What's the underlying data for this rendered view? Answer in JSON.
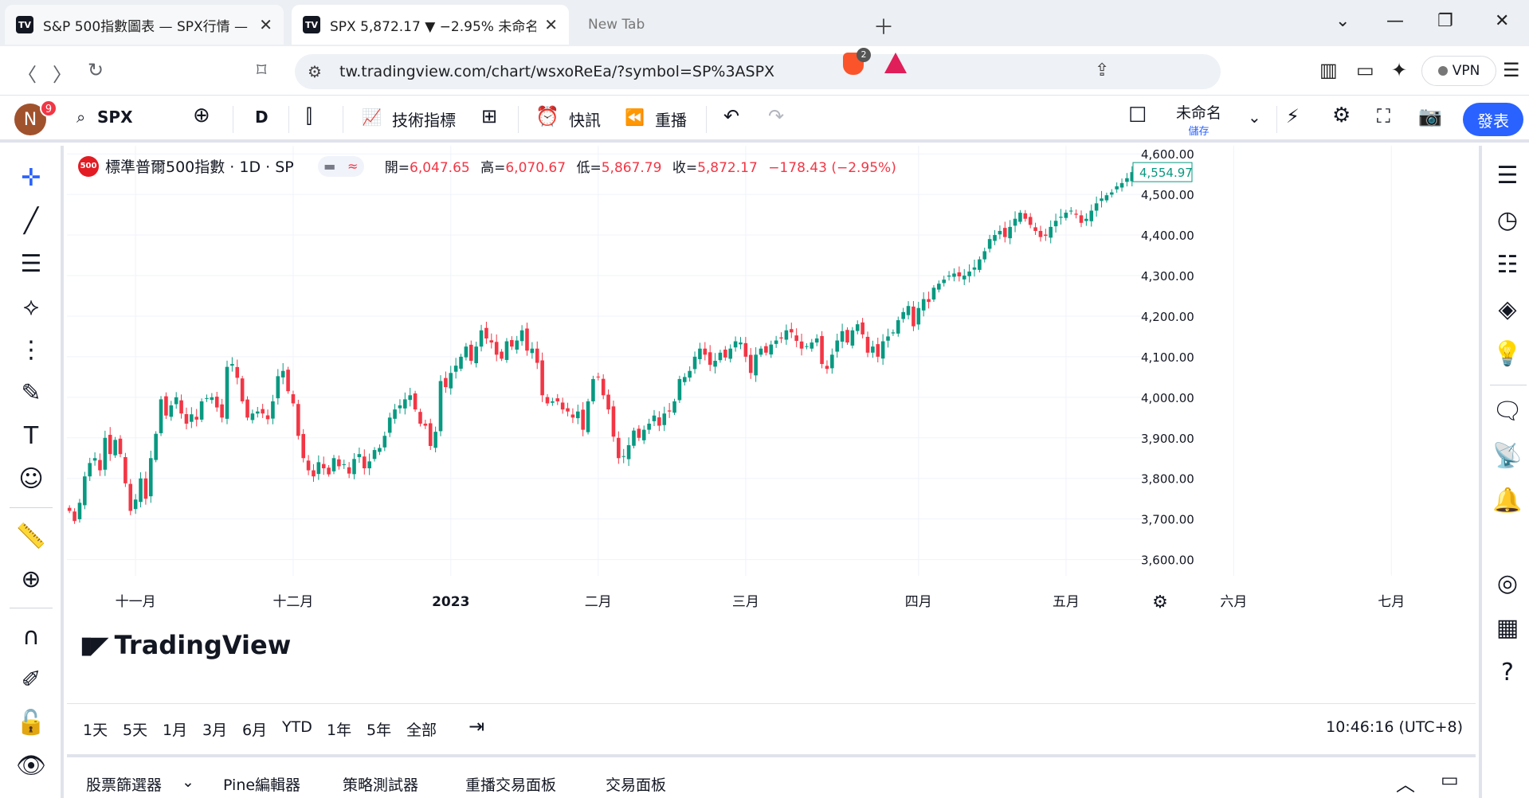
{
  "browser": {
    "tabs": [
      {
        "title": "S&P 500指數圖表 — SPX行情 —",
        "favicon": "TV"
      },
      {
        "title": "SPX 5,872.17 ▼ −2.95% 未命名",
        "favicon": "TV"
      },
      {
        "title": "New Tab"
      }
    ],
    "url": "tw.tradingview.com/chart/wsxoReEa/?symbol=SP%3ASPX",
    "brave_badge": "2",
    "vpn_label": "VPN"
  },
  "toolbar": {
    "avatar_letter": "N",
    "notification_count": "9",
    "symbol": "SPX",
    "interval": "D",
    "indicators_label": "技術指標",
    "alert_label": "快訊",
    "replay_label": "重播",
    "layout_name": "未命名",
    "save_label": "儲存",
    "publish_label": "發表"
  },
  "legend": {
    "symbol_icon": "500",
    "title": "標準普爾500指數 · 1D · SP",
    "open_label": "開=",
    "open": "6,047.65",
    "high_label": "高=",
    "high": "6,070.67",
    "low_label": "低=",
    "low": "5,867.79",
    "close_label": "收=",
    "close": "5,872.17",
    "change": "−178.43 (−2.95%)"
  },
  "watermark": "TradingView",
  "chart_data": {
    "type": "candlestick",
    "y_ticks": [
      "4,600.00",
      "4,500.00",
      "4,400.00",
      "4,300.00",
      "4,200.00",
      "4,100.00",
      "4,000.00",
      "3,900.00",
      "3,800.00",
      "3,700.00",
      "3,600.00"
    ],
    "y_tick_values": [
      4600,
      4500,
      4400,
      4300,
      4200,
      4100,
      4000,
      3900,
      3800,
      3700,
      3600
    ],
    "ylim": [
      3560,
      4620
    ],
    "x_ticks": [
      "十一月",
      "十二月",
      "2023",
      "二月",
      "三月",
      "四月",
      "五月",
      "六月",
      "七月"
    ],
    "x_tick_index": [
      13,
      44,
      75,
      104,
      133,
      167,
      196,
      229,
      260
    ],
    "last_price": "4,554.97",
    "last_value": 4554.97,
    "up_color": "#089981",
    "down_color": "#f23645",
    "closes": [
      3720,
      3695,
      3740,
      3805,
      3838,
      3850,
      3820,
      3900,
      3860,
      3895,
      3860,
      3788,
      3720,
      3748,
      3800,
      3750,
      3850,
      3910,
      3995,
      3955,
      3980,
      4000,
      3960,
      3935,
      3958,
      3945,
      3990,
      3998,
      4000,
      3975,
      3950,
      4075,
      4082,
      4048,
      3990,
      3950,
      3960,
      3965,
      3960,
      3946,
      3990,
      4052,
      4065,
      4015,
      3985,
      3905,
      3850,
      3820,
      3805,
      3840,
      3825,
      3810,
      3850,
      3830,
      3835,
      3812,
      3848,
      3860,
      3825,
      3842,
      3870,
      3875,
      3905,
      3950,
      3970,
      3980,
      3995,
      4005,
      3970,
      3935,
      3930,
      3880,
      3915,
      4040,
      4025,
      4060,
      4078,
      4100,
      4125,
      4090,
      4125,
      4165,
      4145,
      4135,
      4105,
      4095,
      4138,
      4125,
      4140,
      4165,
      4115,
      4120,
      4085,
      4005,
      3985,
      3990,
      3990,
      3970,
      3965,
      3950,
      3965,
      3920,
      3990,
      4045,
      4050,
      4005,
      3970,
      3903,
      3850,
      3855,
      3882,
      3918,
      3900,
      3920,
      3935,
      3955,
      3930,
      3960,
      3965,
      3990,
      4045,
      4050,
      4065,
      4100,
      4120,
      4105,
      4080,
      4090,
      4110,
      4098,
      4120,
      4138,
      4135,
      4100,
      4060,
      4105,
      4120,
      4110,
      4130,
      4140,
      4145,
      4165,
      4160,
      4139,
      4120,
      4126,
      4135,
      4145,
      4082,
      4070,
      4105,
      4140,
      4163,
      4135,
      4165,
      4180,
      4155,
      4110,
      4125,
      4100,
      4138,
      4150,
      4160,
      4190,
      4210,
      4225,
      4175,
      4220,
      4242,
      4235,
      4270,
      4280,
      4290,
      4300,
      4305,
      4298,
      4300,
      4310,
      4320,
      4340,
      4360,
      4390,
      4400,
      4410,
      4395,
      4420,
      4440,
      4455,
      4440,
      4425,
      4410,
      4395,
      4398,
      4420,
      4435,
      4445,
      4455,
      4460,
      4450,
      4430,
      4440,
      4460,
      4478,
      4490,
      4498,
      4505,
      4520,
      4528,
      4540,
      4555
    ]
  },
  "time_ranges": [
    "1天",
    "5天",
    "1月",
    "3月",
    "6月",
    "YTD",
    "1年",
    "5年",
    "全部"
  ],
  "clock": "10:46:16 (UTC+8)",
  "bottom_panel": [
    "股票篩選器",
    "Pine編輯器",
    "策略測試器",
    "重播交易面板",
    "交易面板"
  ]
}
